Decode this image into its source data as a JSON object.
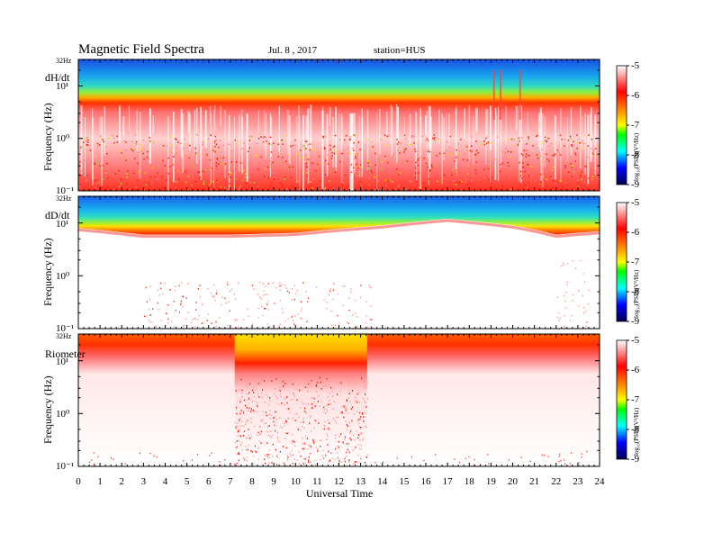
{
  "header": {
    "title": "Magnetic  Field  Spectra",
    "date": "Jul.  8  , 2017",
    "station": "station=HUS"
  },
  "chart_data": {
    "type": "heatmap",
    "xlabel": "Universal Time",
    "x_ticks": [
      "0",
      "1",
      "2",
      "3",
      "4",
      "5",
      "6",
      "7",
      "8",
      "9",
      "10",
      "11",
      "12",
      "13",
      "14",
      "15",
      "16",
      "17",
      "18",
      "19",
      "20",
      "21",
      "22",
      "23",
      "24"
    ],
    "xlim": [
      0,
      24
    ],
    "ylim": [
      0.1,
      32
    ],
    "y_scale": "log",
    "top_freq_label": "32Hz",
    "colorbar": {
      "label": "log₁₀(PSD)(V²/Hz)",
      "range": [
        -9,
        -5
      ],
      "ticks": [
        "-5",
        "-6",
        "-7",
        "-8",
        "-9"
      ],
      "colors": [
        "#ffffff",
        "#ff0000",
        "#ffff00",
        "#00ff00",
        "#00ffff",
        "#0000ff",
        "#000050"
      ]
    },
    "panels": [
      {
        "name": "dH/dt",
        "ylabel": "Frequency  (Hz)",
        "y_ticks": [
          "10¹",
          "10⁰",
          "10⁻¹"
        ],
        "intensity_profile": {
          "peak_freq_hz": 4.5,
          "band_structure": "blue above ~10 Hz, red/orange band 3-7 Hz, white/red noise below 3 Hz",
          "notable_features": [
            "white vertical streaks near 12.5 UT",
            "spikes near 19-20 UT"
          ]
        }
      },
      {
        "name": "dD/dt",
        "ylabel": "Frequency  (Hz)",
        "y_ticks": [
          "10¹",
          "10⁰",
          "10⁻¹"
        ],
        "intensity_profile": {
          "cutoff_curve_hz": [
            [
              0,
              8
            ],
            [
              3,
              6
            ],
            [
              7,
              6
            ],
            [
              10,
              6.5
            ],
            [
              14,
              9
            ],
            [
              17,
              12
            ],
            [
              20,
              9
            ],
            [
              22,
              6
            ],
            [
              24,
              7
            ]
          ],
          "band_structure": "blue above cutoff, green/yellow/red transition, white below"
        }
      },
      {
        "name": "Riometer",
        "ylabel": "Frequency  (Hz)",
        "y_ticks": [
          "10¹",
          "10⁰",
          "10⁻¹"
        ],
        "intensity_profile": {
          "enhanced_interval_ut": [
            7.2,
            13.3
          ],
          "band_structure": "red/orange band 10-32 Hz, yellow enhancement 7.2-13.3 UT"
        }
      }
    ]
  }
}
